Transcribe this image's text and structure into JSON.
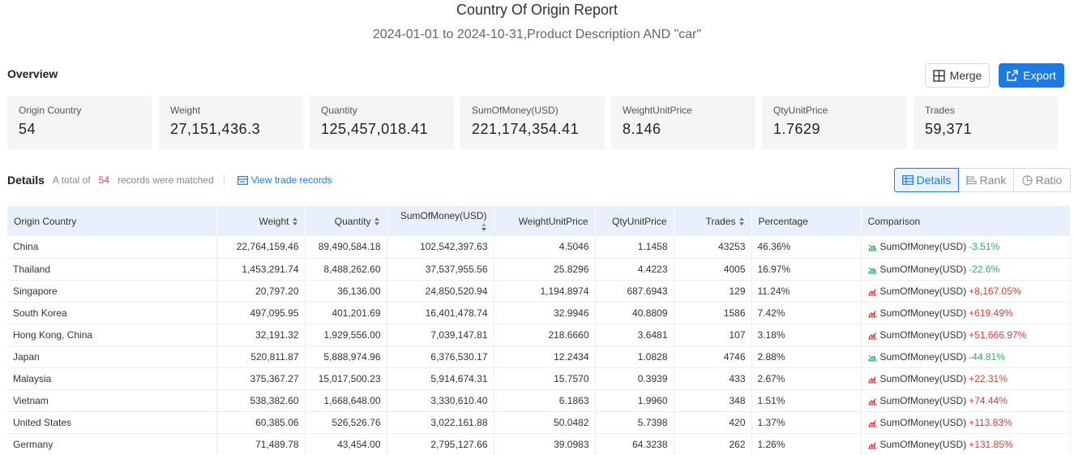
{
  "report": {
    "title": "Country Of Origin Report",
    "subtitle": "2024-01-01 to 2024-10-31,Product Description AND \"car\""
  },
  "overview": {
    "label": "Overview",
    "merge_label": "Merge",
    "export_label": "Export",
    "stats": [
      {
        "label": "Origin Country",
        "value": "54"
      },
      {
        "label": "Weight",
        "value": "27,151,436.3"
      },
      {
        "label": "Quantity",
        "value": "125,457,018.41"
      },
      {
        "label": "SumOfMoney(USD)",
        "value": "221,174,354.41"
      },
      {
        "label": "WeightUnitPrice",
        "value": "8.146"
      },
      {
        "label": "QtyUnitPrice",
        "value": "1.7629"
      },
      {
        "label": "Trades",
        "value": "59,371"
      }
    ]
  },
  "details": {
    "label": "Details",
    "total_prefix": "A total of",
    "total_count": "54",
    "total_suffix": "records were matched",
    "view_link": "View trade records",
    "views": [
      "Details",
      "Rank",
      "Ratio"
    ]
  },
  "table": {
    "headers": [
      "Origin Country",
      "Weight",
      "Quantity",
      "SumOfMoney(USD)",
      "WeightUnitPrice",
      "QtyUnitPrice",
      "Trades",
      "Percentage",
      "Comparison"
    ],
    "rows": [
      {
        "country": "China",
        "weight": "22,764,159.46",
        "quantity": "89,490,584.18",
        "money": "102,542,397.63",
        "wup": "4.5046",
        "qup": "1.1458",
        "trades": "43253",
        "pct": "46.36%",
        "cmp_label": "SumOfMoney(USD)",
        "cmp_value": "-3.51%",
        "dir": "down"
      },
      {
        "country": "Thailand",
        "weight": "1,453,291.74",
        "quantity": "8,488,262.60",
        "money": "37,537,955.56",
        "wup": "25.8296",
        "qup": "4.4223",
        "trades": "4005",
        "pct": "16.97%",
        "cmp_label": "SumOfMoney(USD)",
        "cmp_value": "-22.6%",
        "dir": "down"
      },
      {
        "country": "Singapore",
        "weight": "20,797.20",
        "quantity": "36,136.00",
        "money": "24,850,520.94",
        "wup": "1,194.8974",
        "qup": "687.6943",
        "trades": "129",
        "pct": "11.24%",
        "cmp_label": "SumOfMoney(USD)",
        "cmp_value": "+8,167.05%",
        "dir": "up"
      },
      {
        "country": "South Korea",
        "weight": "497,095.95",
        "quantity": "401,201.69",
        "money": "16,401,478.74",
        "wup": "32.9946",
        "qup": "40.8809",
        "trades": "1586",
        "pct": "7.42%",
        "cmp_label": "SumOfMoney(USD)",
        "cmp_value": "+619.49%",
        "dir": "up"
      },
      {
        "country": "Hong Kong, China",
        "weight": "32,191.32",
        "quantity": "1,929,556.00",
        "money": "7,039,147.81",
        "wup": "218.6660",
        "qup": "3.6481",
        "trades": "107",
        "pct": "3.18%",
        "cmp_label": "SumOfMoney(USD)",
        "cmp_value": "+51,666.97%",
        "dir": "up"
      },
      {
        "country": "Japan",
        "weight": "520,811.87",
        "quantity": "5,888,974.96",
        "money": "6,376,530.17",
        "wup": "12.2434",
        "qup": "1.0828",
        "trades": "4746",
        "pct": "2.88%",
        "cmp_label": "SumOfMoney(USD)",
        "cmp_value": "-44.81%",
        "dir": "down"
      },
      {
        "country": "Malaysia",
        "weight": "375,367.27",
        "quantity": "15,017,500.23",
        "money": "5,914,674.31",
        "wup": "15.7570",
        "qup": "0.3939",
        "trades": "433",
        "pct": "2.67%",
        "cmp_label": "SumOfMoney(USD)",
        "cmp_value": "+22.31%",
        "dir": "up"
      },
      {
        "country": "Vietnam",
        "weight": "538,382.60",
        "quantity": "1,668,648.00",
        "money": "3,330,610.40",
        "wup": "6.1863",
        "qup": "1.9960",
        "trades": "348",
        "pct": "1.51%",
        "cmp_label": "SumOfMoney(USD)",
        "cmp_value": "+74.44%",
        "dir": "up"
      },
      {
        "country": "United States",
        "weight": "60,385.06",
        "quantity": "526,526.76",
        "money": "3,022,161.88",
        "wup": "50.0482",
        "qup": "5.7398",
        "trades": "420",
        "pct": "1.37%",
        "cmp_label": "SumOfMoney(USD)",
        "cmp_value": "+113.83%",
        "dir": "up"
      },
      {
        "country": "Germany",
        "weight": "71,489.78",
        "quantity": "43,454.00",
        "money": "2,795,127.66",
        "wup": "39.0983",
        "qup": "64.3238",
        "trades": "262",
        "pct": "1.26%",
        "cmp_label": "SumOfMoney(USD)",
        "cmp_value": "+131.85%",
        "dir": "up"
      }
    ]
  },
  "colors": {
    "accent": "#1f7ae0",
    "up": "#e4393c",
    "down": "#2db55d",
    "header_bg": "#eaf0fb",
    "stat_bg": "#f4f5f7"
  }
}
